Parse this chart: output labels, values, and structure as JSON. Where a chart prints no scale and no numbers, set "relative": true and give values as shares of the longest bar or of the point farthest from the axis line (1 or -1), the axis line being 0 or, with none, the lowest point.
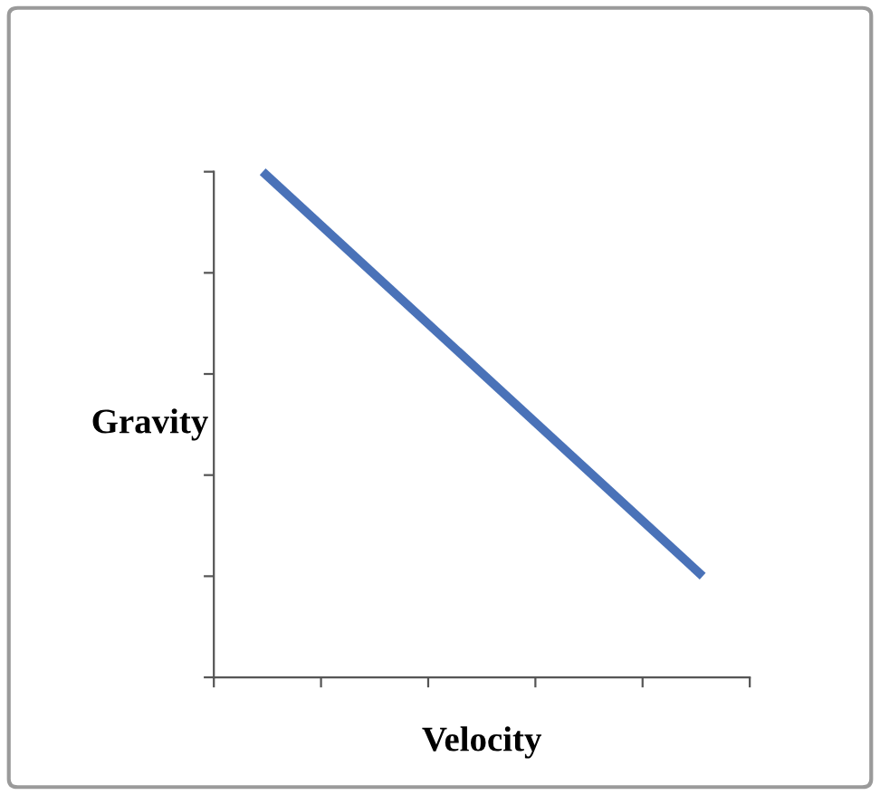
{
  "chart_data": {
    "type": "line",
    "xlabel": "Velocity",
    "ylabel": "Gravity",
    "relative": true,
    "categories": [
      null,
      null
    ],
    "series": [
      {
        "color": "#4a72b8",
        "values": [
          1,
          0.2
        ]
      }
    ]
  }
}
